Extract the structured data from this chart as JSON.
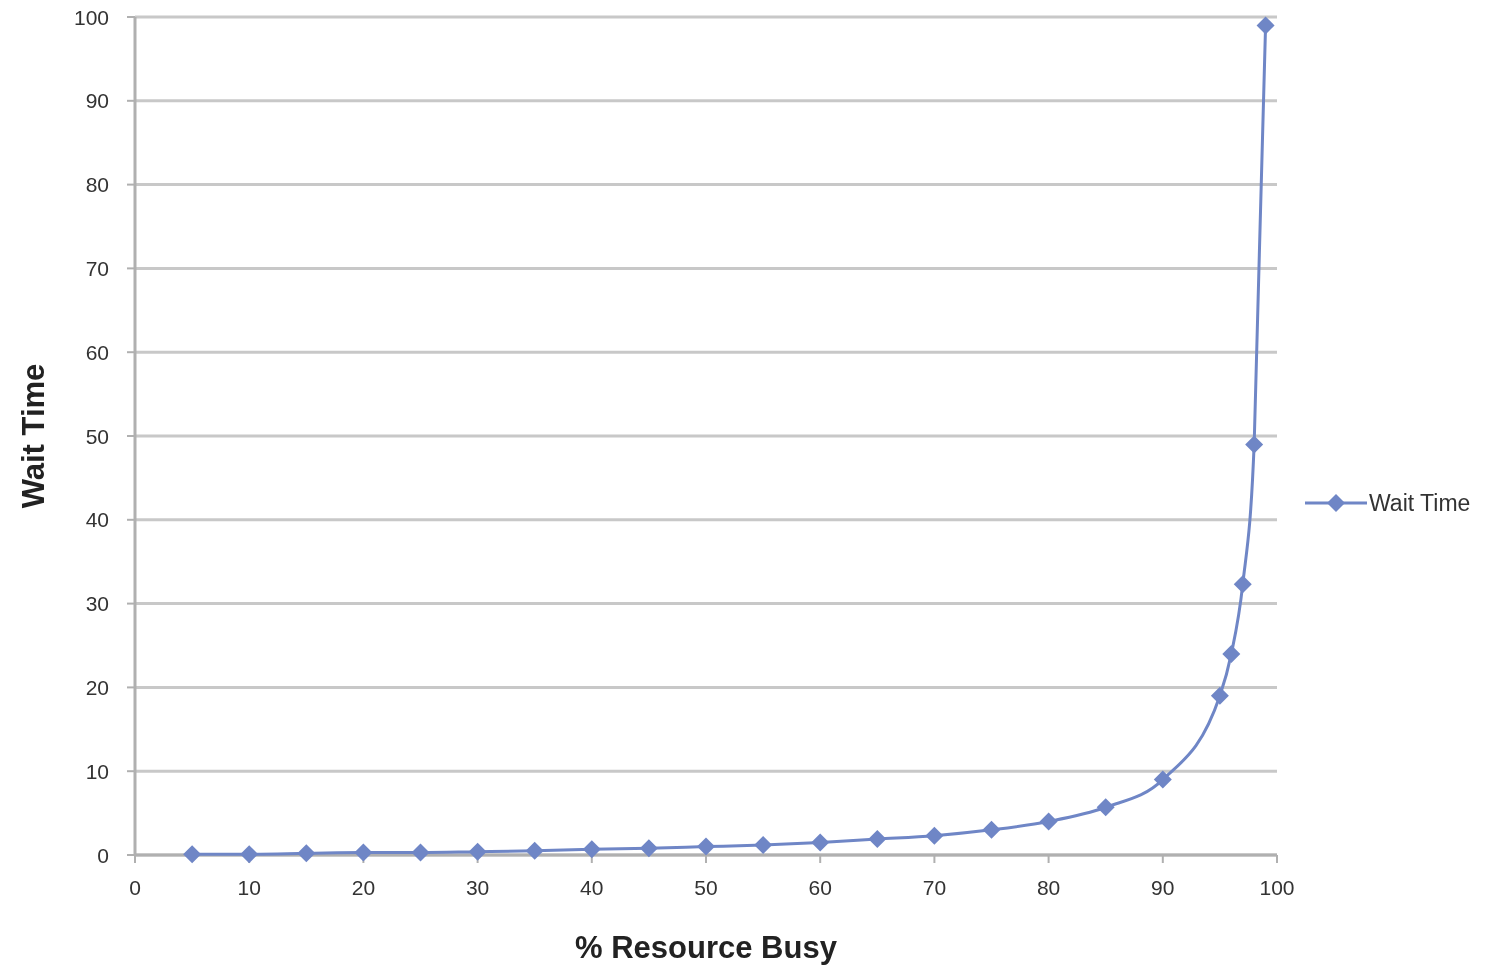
{
  "chart_data": {
    "type": "line",
    "xlabel": "% Resource Busy",
    "ylabel": "Wait Time",
    "x": [
      5,
      10,
      15,
      20,
      25,
      30,
      35,
      40,
      45,
      50,
      55,
      60,
      65,
      70,
      75,
      80,
      85,
      90,
      95,
      96,
      97,
      98,
      99
    ],
    "series": [
      {
        "name": "Wait Time",
        "color": "#6f86c6",
        "values": [
          0.1,
          0.1,
          0.2,
          0.3,
          0.3,
          0.4,
          0.5,
          0.7,
          0.8,
          1,
          1.2,
          1.5,
          1.9,
          2.3,
          3,
          4,
          5.7,
          9,
          19,
          24,
          32.3,
          49,
          99
        ]
      }
    ],
    "xlim": [
      0,
      100
    ],
    "xticks": [
      0,
      10,
      20,
      30,
      40,
      50,
      60,
      70,
      80,
      90,
      100
    ],
    "ylim": [
      0,
      100
    ],
    "yticks": [
      0,
      10,
      20,
      30,
      40,
      50,
      60,
      70,
      80,
      90,
      100
    ],
    "grid": "y",
    "legend": "right",
    "marker": "diamond",
    "line_style": "solid"
  }
}
